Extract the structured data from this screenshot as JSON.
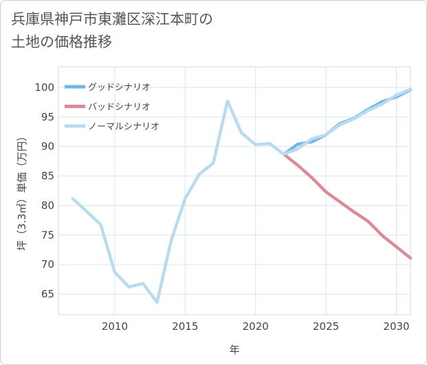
{
  "title": {
    "line1": "兵庫県神戸市東灘区深江本町の",
    "line2": "土地の価格推移"
  },
  "chart_data": {
    "type": "line",
    "xlabel": "年",
    "ylabel": "坪（3.3㎡）単価（万円）",
    "xlim": [
      2006,
      2031
    ],
    "ylim": [
      61.5,
      103.5
    ],
    "xticks": [
      2010,
      2015,
      2020,
      2025,
      2030
    ],
    "yticks": [
      65,
      70,
      75,
      80,
      85,
      90,
      95,
      100
    ],
    "xtick_labels": [
      "2010",
      "2015",
      "2020",
      "2025",
      "2030"
    ],
    "ytick_labels": [
      "65",
      "70",
      "75",
      "80",
      "85",
      "90",
      "95",
      "100"
    ],
    "legend_position": "top-left",
    "series": [
      {
        "name": "グッドシナリオ",
        "color": "#6fb6e8",
        "x": [
          2022,
          2023,
          2024,
          2025,
          2026,
          2027,
          2028,
          2029,
          2030,
          2031
        ],
        "values": [
          88.7,
          90.4,
          90.8,
          92.0,
          93.9,
          94.8,
          96.3,
          97.6,
          98.4,
          99.6
        ]
      },
      {
        "name": "バッドシナリオ",
        "color": "#dc8a94",
        "x": [
          2022,
          2023,
          2024,
          2025,
          2026,
          2027,
          2028,
          2029,
          2030,
          2031
        ],
        "values": [
          88.7,
          86.8,
          84.7,
          82.3,
          80.6,
          78.9,
          77.3,
          74.9,
          73.0,
          71.1
        ]
      },
      {
        "name": "ノーマルシナリオ",
        "color": "#b8dcee",
        "x": [
          2007,
          2008,
          2009,
          2010,
          2011,
          2012,
          2013,
          2014,
          2015,
          2016,
          2017,
          2018,
          2019,
          2020,
          2021,
          2022,
          2023,
          2024,
          2025,
          2026,
          2027,
          2028,
          2029,
          2030,
          2031
        ],
        "values": [
          81.2,
          79.0,
          76.8,
          68.7,
          66.2,
          66.8,
          63.6,
          74.0,
          81.2,
          85.3,
          87.2,
          97.7,
          92.3,
          90.3,
          90.5,
          88.7,
          89.6,
          91.3,
          92.0,
          93.7,
          94.7,
          96.1,
          97.2,
          98.7,
          99.7
        ]
      }
    ]
  }
}
